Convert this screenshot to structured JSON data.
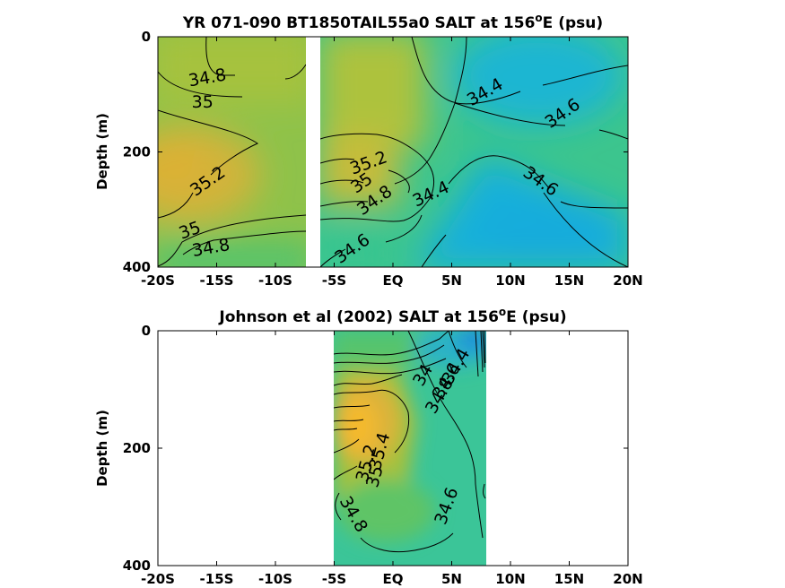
{
  "chart_data": [
    {
      "type": "heatmap",
      "title": "YR 071-090 BT1850TAIL55a0 SALT at 156",
      "title_sup": "o",
      "title_tail": "E (psu)",
      "ylabel": "Depth (m)",
      "xlabel": "",
      "x_range": [
        -20,
        20
      ],
      "y_range": [
        400,
        0
      ],
      "x_ticks": [
        -20,
        -15,
        -10,
        -5,
        0,
        5,
        10,
        15,
        20
      ],
      "x_tick_labels": [
        "-20S",
        "-15S",
        "-10S",
        "-5S",
        "EQ",
        "5N",
        "10N",
        "15N",
        "20N"
      ],
      "y_ticks": [
        0,
        200,
        400
      ],
      "y_tick_labels": [
        "0",
        "200",
        "400"
      ],
      "data_gap": [
        -7.3,
        -6.8
      ],
      "contour_levels": [
        34.4,
        34.6,
        34.8,
        35,
        35.2
      ],
      "contour_labels": [
        {
          "text": "34.8",
          "lat": -15.8,
          "depth": 70
        },
        {
          "text": "35",
          "lat": -16.2,
          "depth": 112
        },
        {
          "text": "35.2",
          "lat": -15.8,
          "depth": 250
        },
        {
          "text": "35",
          "lat": -17.3,
          "depth": 335
        },
        {
          "text": "34.8",
          "lat": -15.5,
          "depth": 365
        },
        {
          "text": "34.4",
          "lat": 7.8,
          "depth": 95
        },
        {
          "text": "34.6",
          "lat": 14.4,
          "depth": 132
        },
        {
          "text": "35.2",
          "lat": -2.1,
          "depth": 218
        },
        {
          "text": "35",
          "lat": -2.7,
          "depth": 253
        },
        {
          "text": "34.8",
          "lat": -1.6,
          "depth": 283
        },
        {
          "text": "34.4",
          "lat": 3.2,
          "depth": 272
        },
        {
          "text": "34.6",
          "lat": 12.6,
          "depth": 250
        },
        {
          "text": "34.6",
          "lat": -3.5,
          "depth": 367
        }
      ],
      "colormap": {
        "34.0": "#1a5fd8",
        "34.4": "#1aaed8",
        "34.6": "#2cc6a2",
        "34.8": "#4cc472",
        "35.0": "#a8c23c",
        "35.2": "#d6b53a",
        "35.4": "#f2b830"
      }
    },
    {
      "type": "heatmap",
      "title": "Johnson et al (2002) SALT at 156",
      "title_sup": "o",
      "title_tail": "E (psu)",
      "ylabel": "Depth (m)",
      "xlabel": "",
      "x_range": [
        -20,
        20
      ],
      "y_range": [
        400,
        0
      ],
      "data_lat_range": [
        -5,
        8
      ],
      "x_ticks": [
        -20,
        -15,
        -10,
        -5,
        0,
        5,
        10,
        15,
        20
      ],
      "x_tick_labels": [
        "-20S",
        "-15S",
        "-10S",
        "-5S",
        "EQ",
        "5N",
        "10N",
        "15N",
        "20N"
      ],
      "y_ticks": [
        0,
        200,
        400
      ],
      "y_tick_labels": [
        "0",
        "200",
        "400"
      ],
      "contour_levels": [
        34.4,
        34.6,
        34.8,
        35,
        35.2,
        35.4
      ],
      "contour_labels": [
        {
          "text": "34.4",
          "lat": 5.3,
          "depth": 60
        },
        {
          "text": "34.6",
          "lat": 4.5,
          "depth": 85
        },
        {
          "text": "34.8",
          "lat": 3.9,
          "depth": 110
        },
        {
          "text": "34",
          "lat": 2.5,
          "depth": 75
        },
        {
          "text": "35.4",
          "lat": -1.2,
          "depth": 205
        },
        {
          "text": "35.2",
          "lat": -2.3,
          "depth": 225
        },
        {
          "text": "35",
          "lat": -1.6,
          "depth": 248
        },
        {
          "text": "34.8",
          "lat": -3.3,
          "depth": 312
        },
        {
          "text": "34.6",
          "lat": 4.5,
          "depth": 298
        }
      ],
      "colormap": {
        "34.0": "#1a5fd8",
        "34.4": "#1aaed8",
        "34.6": "#2cc6a2",
        "34.8": "#4cc472",
        "35.0": "#a8c23c",
        "35.2": "#d6b53a",
        "35.4": "#f2b830"
      }
    }
  ]
}
